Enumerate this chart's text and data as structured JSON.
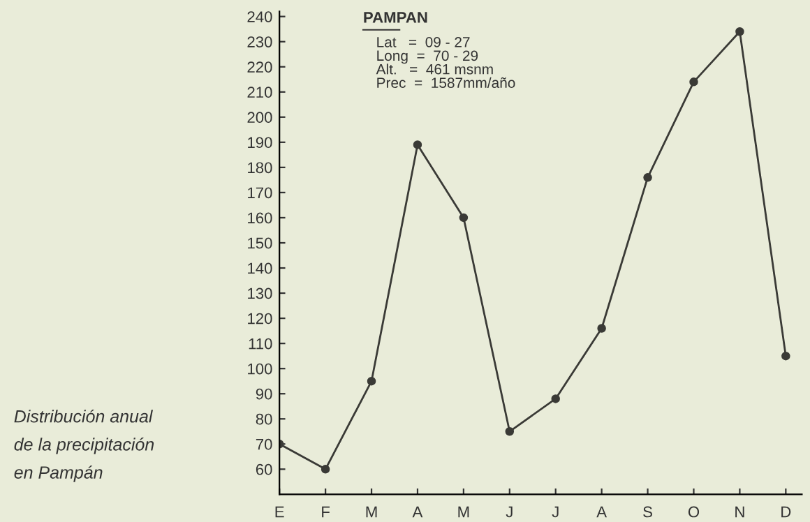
{
  "chart_data": {
    "type": "line",
    "title": "PAMPAN",
    "subtitle": "Lat   =  09 - 27\nLong  =  70 - 29\nAlt.   =  461 msnm\nPrec  =  1587mm/año",
    "categories": [
      "E",
      "F",
      "M",
      "A",
      "M",
      "J",
      "J",
      "A",
      "S",
      "O",
      "N",
      "D"
    ],
    "series": [
      {
        "color": "#3a3a36",
        "values": [
          70,
          60,
          95,
          189,
          160,
          75,
          88,
          116,
          176,
          214,
          234,
          105
        ]
      }
    ],
    "ylim": [
      50,
      242
    ],
    "yticks": [
      60,
      70,
      80,
      90,
      100,
      110,
      120,
      130,
      140,
      150,
      160,
      170,
      180,
      190,
      200,
      210,
      220,
      230,
      240
    ],
    "marker": "circle",
    "line_style": "solid",
    "grid": false,
    "annotations": [
      "Distribución anual\nde la precipitación\nen Pampán"
    ]
  }
}
